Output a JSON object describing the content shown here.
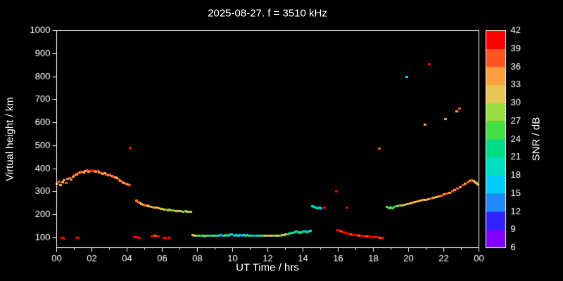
{
  "title": "2025-08-27. f = 3510 kHz",
  "axes": {
    "xlabel": "UT Time / hrs",
    "ylabel": "Virtual height / km",
    "x_range_hours": [
      0,
      24
    ],
    "y_range_km": [
      57,
      1000
    ],
    "x_tick_hours": [
      0,
      2,
      4,
      6,
      8,
      10,
      12,
      14,
      16,
      18,
      20,
      22,
      24
    ],
    "x_tick_labels": [
      "00",
      "02",
      "04",
      "06",
      "08",
      "10",
      "12",
      "14",
      "16",
      "18",
      "20",
      "22",
      "00"
    ],
    "y_tick_values": [
      100,
      200,
      300,
      400,
      500,
      600,
      700,
      800,
      900,
      1000
    ]
  },
  "colorbar": {
    "label": "SNR / dB",
    "tick_values": [
      6,
      9,
      12,
      15,
      18,
      21,
      24,
      27,
      30,
      33,
      36,
      39,
      42
    ],
    "segments": [
      {
        "min": 6,
        "max": 9,
        "color": "#8000ff"
      },
      {
        "min": 9,
        "max": 12,
        "color": "#3322ff"
      },
      {
        "min": 12,
        "max": 15,
        "color": "#2288ff"
      },
      {
        "min": 15,
        "max": 18,
        "color": "#00ccff"
      },
      {
        "min": 18,
        "max": 21,
        "color": "#00e0c0"
      },
      {
        "min": 21,
        "max": 24,
        "color": "#00dd88"
      },
      {
        "min": 24,
        "max": 27,
        "color": "#44dd44"
      },
      {
        "min": 27,
        "max": 30,
        "color": "#99dd44"
      },
      {
        "min": 30,
        "max": 33,
        "color": "#e6c455"
      },
      {
        "min": 33,
        "max": 36,
        "color": "#ffa040"
      },
      {
        "min": 36,
        "max": 39,
        "color": "#ff5522"
      },
      {
        "min": 39,
        "max": 42,
        "color": "#ff0000"
      }
    ]
  },
  "chart_data": {
    "type": "scatter",
    "title": "2025-08-27. f = 3510 kHz",
    "xlabel": "UT Time / hrs",
    "ylabel": "Virtual height / km",
    "colorbar_label": "SNR / dB",
    "xlim": [
      0,
      24
    ],
    "ylim": [
      57,
      1000
    ],
    "snr_range_db": [
      6,
      42
    ],
    "points_format": [
      "ut_hour",
      "virtual_height_km",
      "snr_db"
    ],
    "points": [
      [
        0.05,
        335,
        34
      ],
      [
        0.15,
        345,
        37
      ],
      [
        0.25,
        330,
        34
      ],
      [
        0.35,
        342,
        31
      ],
      [
        0.45,
        350,
        34
      ],
      [
        0.55,
        338,
        37
      ],
      [
        0.65,
        355,
        34
      ],
      [
        0.75,
        360,
        37
      ],
      [
        0.85,
        352,
        34
      ],
      [
        0.95,
        365,
        34
      ],
      [
        1.05,
        370,
        37
      ],
      [
        1.15,
        375,
        34
      ],
      [
        1.25,
        380,
        37
      ],
      [
        1.35,
        385,
        34
      ],
      [
        1.45,
        388,
        37
      ],
      [
        1.55,
        384,
        34
      ],
      [
        1.65,
        390,
        31
      ],
      [
        1.75,
        392,
        37
      ],
      [
        1.85,
        388,
        34
      ],
      [
        1.95,
        391,
        37
      ],
      [
        2.05,
        393,
        40
      ],
      [
        2.15,
        389,
        37
      ],
      [
        2.25,
        386,
        34
      ],
      [
        2.35,
        390,
        37
      ],
      [
        2.45,
        383,
        34
      ],
      [
        2.55,
        380,
        37
      ],
      [
        2.65,
        377,
        34
      ],
      [
        2.75,
        380,
        31
      ],
      [
        2.85,
        375,
        37
      ],
      [
        2.95,
        371,
        34
      ],
      [
        3.05,
        373,
        37
      ],
      [
        3.15,
        369,
        34
      ],
      [
        3.25,
        366,
        37
      ],
      [
        3.35,
        363,
        34
      ],
      [
        3.45,
        358,
        31
      ],
      [
        3.55,
        353,
        37
      ],
      [
        3.65,
        347,
        34
      ],
      [
        3.75,
        342,
        37
      ],
      [
        3.85,
        339,
        34
      ],
      [
        3.95,
        335,
        37
      ],
      [
        4.05,
        331,
        34
      ],
      [
        4.15,
        328,
        37
      ],
      [
        4.2,
        490,
        40
      ],
      [
        4.55,
        262,
        34
      ],
      [
        4.65,
        256,
        37
      ],
      [
        4.75,
        251,
        34
      ],
      [
        4.85,
        247,
        31
      ],
      [
        4.95,
        244,
        34
      ],
      [
        5.05,
        241,
        37
      ],
      [
        5.15,
        239,
        34
      ],
      [
        5.25,
        237,
        31
      ],
      [
        5.4,
        234,
        34
      ],
      [
        5.55,
        232,
        34
      ],
      [
        5.7,
        230,
        31
      ],
      [
        5.85,
        228,
        34
      ],
      [
        5.95,
        226,
        28
      ],
      [
        6.05,
        224,
        34
      ],
      [
        6.15,
        222,
        31
      ],
      [
        6.25,
        221,
        25
      ],
      [
        6.35,
        220,
        34
      ],
      [
        6.45,
        221,
        28
      ],
      [
        6.55,
        218,
        34
      ],
      [
        6.65,
        219,
        25
      ],
      [
        6.8,
        217,
        31
      ],
      [
        6.95,
        215,
        34
      ],
      [
        7.05,
        216,
        28
      ],
      [
        7.2,
        214,
        34
      ],
      [
        7.35,
        215,
        25
      ],
      [
        7.45,
        213,
        31
      ],
      [
        7.55,
        212,
        34
      ],
      [
        7.65,
        213,
        28
      ],
      [
        0.3,
        100,
        40
      ],
      [
        0.45,
        98,
        40
      ],
      [
        1.15,
        100,
        40
      ],
      [
        1.25,
        101,
        40
      ],
      [
        4.45,
        104,
        40
      ],
      [
        4.55,
        102,
        40
      ],
      [
        4.7,
        100,
        40
      ],
      [
        5.45,
        107,
        40
      ],
      [
        5.55,
        109,
        40
      ],
      [
        5.65,
        108,
        37
      ],
      [
        5.8,
        105,
        40
      ],
      [
        6.1,
        100,
        40
      ],
      [
        6.25,
        101,
        40
      ],
      [
        6.45,
        99,
        40
      ],
      [
        7.75,
        111,
        34
      ],
      [
        7.85,
        110,
        28
      ],
      [
        7.95,
        109,
        31
      ],
      [
        8.05,
        108,
        25
      ],
      [
        8.15,
        110,
        34
      ],
      [
        8.25,
        108,
        22
      ],
      [
        8.35,
        109,
        28
      ],
      [
        8.45,
        107,
        19
      ],
      [
        8.55,
        109,
        31
      ],
      [
        8.65,
        108,
        25
      ],
      [
        8.75,
        110,
        16
      ],
      [
        8.85,
        108,
        22
      ],
      [
        8.95,
        109,
        28
      ],
      [
        9.05,
        110,
        19
      ],
      [
        9.15,
        108,
        25
      ],
      [
        9.25,
        109,
        16
      ],
      [
        9.35,
        111,
        22
      ],
      [
        9.45,
        109,
        13
      ],
      [
        9.55,
        110,
        19
      ],
      [
        9.65,
        112,
        25
      ],
      [
        9.75,
        110,
        16
      ],
      [
        9.85,
        113,
        22
      ],
      [
        9.95,
        115,
        19
      ],
      [
        10.05,
        112,
        13
      ],
      [
        10.15,
        110,
        16
      ],
      [
        10.25,
        111,
        22
      ],
      [
        10.35,
        109,
        19
      ],
      [
        10.45,
        112,
        16
      ],
      [
        10.55,
        110,
        13
      ],
      [
        10.65,
        111,
        19
      ],
      [
        10.75,
        109,
        22
      ],
      [
        10.85,
        111,
        16
      ],
      [
        10.95,
        110,
        25
      ],
      [
        11.05,
        109,
        19
      ],
      [
        11.15,
        108,
        16
      ],
      [
        11.25,
        110,
        22
      ],
      [
        11.35,
        108,
        13
      ],
      [
        11.45,
        109,
        19
      ],
      [
        11.55,
        110,
        16
      ],
      [
        11.65,
        108,
        25
      ],
      [
        11.75,
        109,
        22
      ],
      [
        11.85,
        110,
        28
      ],
      [
        11.95,
        108,
        31
      ],
      [
        12.05,
        109,
        34
      ],
      [
        12.15,
        108,
        28
      ],
      [
        12.25,
        110,
        31
      ],
      [
        12.35,
        108,
        25
      ],
      [
        12.45,
        109,
        34
      ],
      [
        12.55,
        108,
        31
      ],
      [
        12.65,
        110,
        28
      ],
      [
        12.75,
        109,
        22
      ],
      [
        12.85,
        111,
        34
      ],
      [
        12.95,
        112,
        31
      ],
      [
        13.05,
        114,
        28
      ],
      [
        13.15,
        116,
        25
      ],
      [
        13.25,
        118,
        22
      ],
      [
        13.35,
        120,
        19
      ],
      [
        13.45,
        122,
        25
      ],
      [
        13.55,
        124,
        22
      ],
      [
        13.65,
        126,
        19
      ],
      [
        13.75,
        124,
        16
      ],
      [
        13.85,
        122,
        22
      ],
      [
        13.95,
        125,
        25
      ],
      [
        14.05,
        128,
        22
      ],
      [
        14.15,
        126,
        19
      ],
      [
        14.25,
        124,
        16
      ],
      [
        14.35,
        127,
        22
      ],
      [
        14.45,
        130,
        19
      ],
      [
        14.55,
        236,
        19
      ],
      [
        14.65,
        233,
        22
      ],
      [
        14.75,
        230,
        16
      ],
      [
        14.85,
        228,
        19
      ],
      [
        14.95,
        231,
        22
      ],
      [
        15.05,
        229,
        16
      ],
      [
        15.25,
        231,
        40
      ],
      [
        15.9,
        300,
        40
      ],
      [
        16.5,
        232,
        40
      ],
      [
        18.35,
        488,
        37
      ],
      [
        16.0,
        134,
        40
      ],
      [
        16.1,
        130,
        40
      ],
      [
        16.2,
        127,
        37
      ],
      [
        16.3,
        124,
        40
      ],
      [
        16.45,
        121,
        40
      ],
      [
        16.6,
        118,
        40
      ],
      [
        16.75,
        116,
        37
      ],
      [
        16.9,
        113,
        40
      ],
      [
        17.05,
        111,
        40
      ],
      [
        17.2,
        110,
        37
      ],
      [
        17.35,
        108,
        40
      ],
      [
        17.5,
        107,
        40
      ],
      [
        17.65,
        106,
        37
      ],
      [
        17.8,
        105,
        40
      ],
      [
        17.95,
        104,
        40
      ],
      [
        18.1,
        103,
        40
      ],
      [
        18.25,
        102,
        40
      ],
      [
        18.4,
        101,
        37
      ],
      [
        18.55,
        100,
        40
      ],
      [
        18.8,
        233,
        25
      ],
      [
        18.9,
        229,
        22
      ],
      [
        19.0,
        231,
        28
      ],
      [
        19.1,
        227,
        25
      ],
      [
        19.2,
        234,
        22
      ],
      [
        19.35,
        237,
        28
      ],
      [
        19.5,
        239,
        25
      ],
      [
        19.65,
        241,
        31
      ],
      [
        19.8,
        244,
        28
      ],
      [
        19.95,
        247,
        34
      ],
      [
        20.1,
        249,
        31
      ],
      [
        20.25,
        252,
        34
      ],
      [
        20.4,
        255,
        31
      ],
      [
        20.55,
        257,
        34
      ],
      [
        20.7,
        260,
        31
      ],
      [
        20.85,
        263,
        34
      ],
      [
        21.0,
        266,
        31
      ],
      [
        21.15,
        268,
        34
      ],
      [
        21.3,
        271,
        37
      ],
      [
        21.45,
        274,
        34
      ],
      [
        21.6,
        277,
        31
      ],
      [
        21.75,
        280,
        34
      ],
      [
        21.9,
        284,
        37
      ],
      [
        22.05,
        288,
        34
      ],
      [
        22.2,
        292,
        37
      ],
      [
        22.35,
        296,
        34
      ],
      [
        22.5,
        301,
        37
      ],
      [
        22.65,
        307,
        34
      ],
      [
        22.8,
        313,
        37
      ],
      [
        22.95,
        320,
        34
      ],
      [
        23.1,
        328,
        37
      ],
      [
        23.25,
        335,
        34
      ],
      [
        23.4,
        341,
        37
      ],
      [
        23.5,
        346,
        34
      ],
      [
        23.6,
        350,
        37
      ],
      [
        23.7,
        347,
        34
      ],
      [
        23.8,
        342,
        31
      ],
      [
        23.9,
        337,
        34
      ],
      [
        23.97,
        332,
        31
      ],
      [
        19.9,
        800,
        16
      ],
      [
        21.2,
        855,
        40
      ],
      [
        20.95,
        590,
        34
      ],
      [
        22.1,
        617,
        34
      ],
      [
        22.75,
        650,
        34
      ],
      [
        22.9,
        660,
        37
      ]
    ]
  }
}
